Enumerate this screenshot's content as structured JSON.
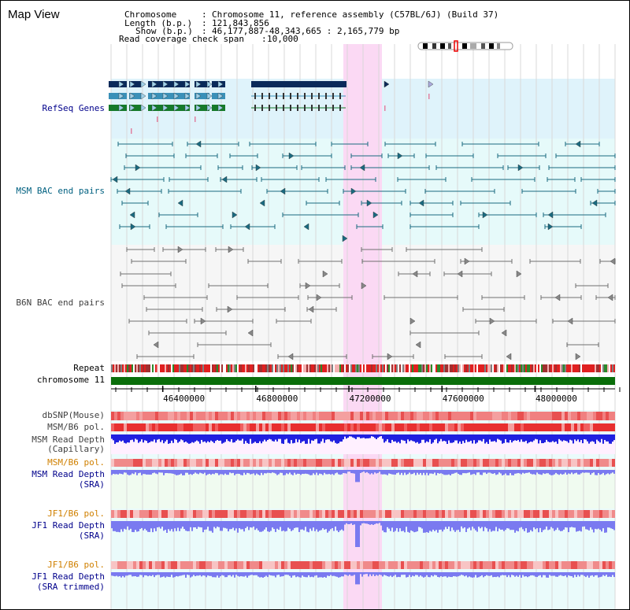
{
  "title": "Map View",
  "info": {
    "chromosome_key": "Chromosome",
    "chromosome_val": "Chromosome 11, reference assembly (C57BL/6J) (Build 37)",
    "length_key": "Length (b.p.)",
    "length_val": "121,843,856",
    "show_key": "Show (b.p.)",
    "show_val": "46,177,887-48,343,665 : 2,165,779 bp",
    "span_key": "Read coverage check span",
    "span_val": "10,000"
  },
  "tracks": {
    "refseq": "RefSeq Genes",
    "msm_bac": "MSM BAC end pairs",
    "b6n_bac": "B6N BAC end pairs",
    "repeat": "Repeat",
    "chromosome": "chromosome 11",
    "dbsnp": "dbSNP(Mouse)",
    "msm_b6_pol_1": "MSM/B6 pol.",
    "msm_depth_cap_1": "MSM Read Depth",
    "msm_depth_cap_2": "(Capillary)",
    "msm_b6_pol_2": "MSM/B6 pol.",
    "msm_depth_sra_1": "MSM Read Depth",
    "msm_depth_sra_2": "(SRA)",
    "jf1_b6_pol_1": "JF1/B6 pol.",
    "jf1_depth_sra_1": "JF1 Read Depth",
    "jf1_depth_sra_2": "(SRA)",
    "jf1_b6_pol_2": "JF1/B6 pol.",
    "jf1_depth_trim_1": "JF1 Read Depth",
    "jf1_depth_trim_2": "(SRA trimmed)"
  },
  "axis_ticks": [
    "46400000",
    "46800000",
    "47200000",
    "47600000",
    "48000000"
  ],
  "axis_tick_values": [
    46400000,
    46800000,
    47200000,
    47600000,
    48000000
  ],
  "view_range": [
    46177887,
    48343665
  ],
  "highlight_range": [
    47100000,
    47270000
  ],
  "colors": {
    "refseq_bg": "#dff3fb",
    "msm_bg": "#e6fafa",
    "b6n_bg": "#f6f6f6",
    "highlight": "#fbd9f4",
    "gene_dark": "#0a2a5a",
    "gene_light": "#3a90b8",
    "gene_green": "#157a2a",
    "msm_pair": "#1a6a80",
    "b6n_pair": "#707070",
    "chrom_bar": "#0a6e0a",
    "depth_blue": "#2020e0",
    "depth_light": "#7a7af0",
    "snp_red": "#e04040"
  }
}
